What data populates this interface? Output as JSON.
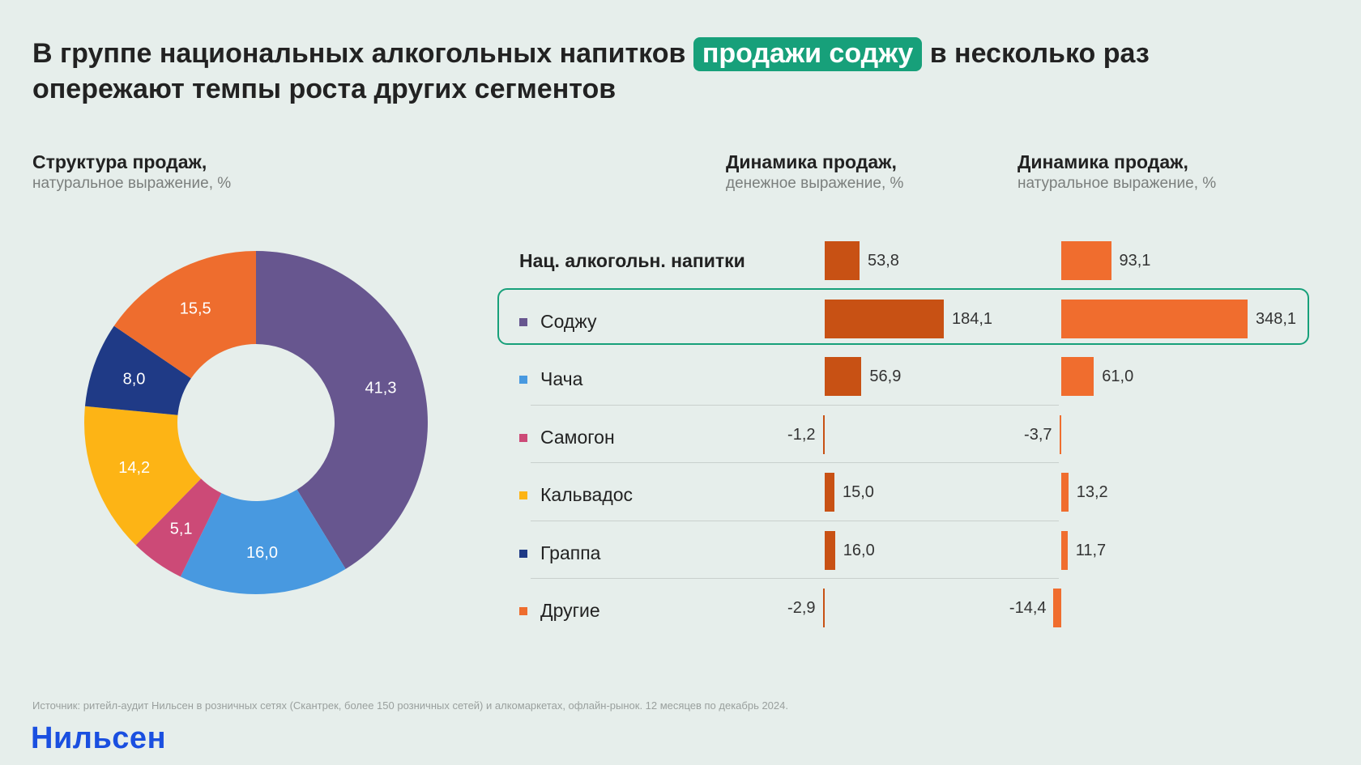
{
  "title": {
    "part1": "В группе национальных алкогольных напитков ",
    "highlight": "продажи соджу",
    "part2": " в несколько раз опережают темпы роста других сегментов"
  },
  "structure_header": {
    "title": "Структура продаж,",
    "subtitle": "натуральное выражение, %"
  },
  "money_header": {
    "title": "Динамика продаж,",
    "subtitle": "денежное выражение, %"
  },
  "volume_header": {
    "title": "Динамика продаж,",
    "subtitle": "натуральное выражение, %"
  },
  "colors": {
    "accent": "#17a07a",
    "money_bar": "#c85114",
    "volume_bar": "#f06d2e",
    "logo": "#1a4fe0"
  },
  "chart_data": [
    {
      "type": "pie",
      "variant": "donut",
      "title": "Структура продаж,",
      "subtitle": "натуральное выражение, %",
      "slices": [
        {
          "label": "Соджу",
          "value": 41.3,
          "display": "41,3",
          "color": "#67568f"
        },
        {
          "label": "Чача",
          "value": 16.0,
          "display": "16,0",
          "color": "#4899e0"
        },
        {
          "label": "Самогон",
          "value": 5.1,
          "display": "5,1",
          "color": "#cc4a77"
        },
        {
          "label": "Кальвадос",
          "value": 14.2,
          "display": "14,2",
          "color": "#fdb415"
        },
        {
          "label": "Граппа",
          "value": 8.0,
          "display": "8,0",
          "color": "#1f3a86"
        },
        {
          "label": "Другие",
          "value": 15.5,
          "display": "15,5",
          "color": "#ee6d2e"
        }
      ]
    },
    {
      "type": "bar",
      "orientation": "horizontal",
      "title": "Динамика продаж,",
      "subtitle": "денежное выражение, %",
      "categories": [
        "Нац. алкогольн. напитки",
        "Соджу",
        "Чача",
        "Самогон",
        "Кальвадос",
        "Граппа",
        "Другие"
      ],
      "values": [
        53.8,
        184.1,
        56.9,
        -1.2,
        15.0,
        16.0,
        -2.9
      ],
      "labels": [
        "53,8",
        "184,1",
        "56,9",
        "-1,2",
        "15,0",
        "16,0",
        "-2,9"
      ]
    },
    {
      "type": "bar",
      "orientation": "horizontal",
      "title": "Динамика продаж,",
      "subtitle": "натуральное выражение, %",
      "categories": [
        "Нац. алкогольн. напитки",
        "Соджу",
        "Чача",
        "Самогон",
        "Кальвадос",
        "Граппа",
        "Другие"
      ],
      "values": [
        93.1,
        348.1,
        61.0,
        -3.7,
        13.2,
        11.7,
        -14.4
      ],
      "labels": [
        "93,1",
        "348,1",
        "61,0",
        "-3,7",
        "13,2",
        "11,7",
        "-14,4"
      ]
    }
  ],
  "rows": [
    {
      "label": "Нац. алкогольн. напитки",
      "group": true
    },
    {
      "label": "Соджу",
      "marker_color": "#67568f",
      "highlighted": true
    },
    {
      "label": "Чача",
      "marker_color": "#4899e0"
    },
    {
      "label": "Самогон",
      "marker_color": "#cc4a77"
    },
    {
      "label": "Кальвадос",
      "marker_color": "#fdb415"
    },
    {
      "label": "Граппа",
      "marker_color": "#1f3a86"
    },
    {
      "label": "Другие",
      "marker_color": "#ee6d2e"
    }
  ],
  "footer": {
    "source": "Источник: ритейл-аудит Нильсен в розничных сетях (Скантрек, более 150 розничных сетей) и алкомаркетах, офлайн-рынок. 12 месяцев по декабрь 2024.",
    "logo": "Нильсен"
  }
}
